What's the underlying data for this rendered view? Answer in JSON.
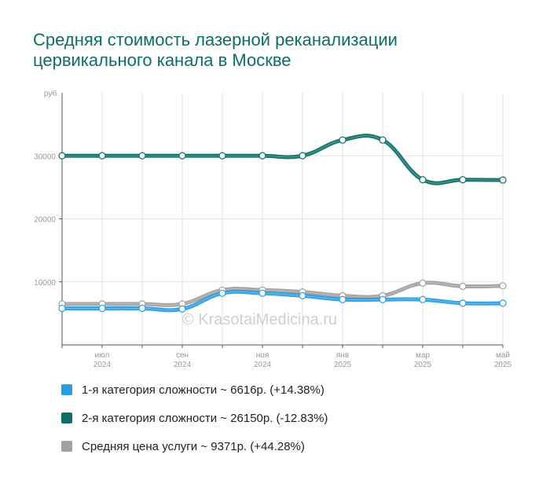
{
  "title": "Средняя стоимость лазерной реканализации цервикального канала в Москве",
  "watermark": "© KrasotaiMedicina.ru",
  "chart_data": {
    "type": "line",
    "title": "Средняя стоимость лазерной реканализации цервикального канала в Москве",
    "ylabel": "руб.",
    "ylim": [
      0,
      40000
    ],
    "y_ticks": [
      "10000",
      "20000",
      "30000"
    ],
    "y_tick_values": [
      10000,
      20000,
      30000
    ],
    "grid": true,
    "legend_position": "bottom",
    "x_tick_labels": [
      {
        "month": "июл",
        "year": "2024",
        "index": 1
      },
      {
        "month": "сен",
        "year": "2024",
        "index": 3
      },
      {
        "month": "ноя",
        "year": "2024",
        "index": 5
      },
      {
        "month": "янв",
        "year": "2025",
        "index": 7
      },
      {
        "month": "мар",
        "year": "2025",
        "index": 9
      },
      {
        "month": "май",
        "year": "2025",
        "index": 11
      }
    ],
    "x": [
      "2024-06",
      "2024-07",
      "2024-08",
      "2024-09",
      "2024-10",
      "2024-11",
      "2024-12",
      "2025-01",
      "2025-02",
      "2025-03",
      "2025-04",
      "2025-05"
    ],
    "series": [
      {
        "name": "2-я категория сложности ~ 26150р. (-12.83%)",
        "color": "#0d6e67",
        "values": [
          30000,
          30000,
          30000,
          30000,
          30000,
          30000,
          30000,
          32500,
          32500,
          26200,
          26200,
          26150
        ]
      },
      {
        "name": "Средняя цена услуги ~ 9371р. (+44.28%)",
        "color": "#a0a0a0",
        "values": [
          6500,
          6500,
          6500,
          6500,
          8700,
          8700,
          8400,
          7800,
          7800,
          9800,
          9300,
          9371
        ]
      },
      {
        "name": "1-я категория сложности ~ 6616р. (+14.38%)",
        "color": "#2a9de0",
        "values": [
          5800,
          5800,
          5800,
          5700,
          8200,
          8200,
          7800,
          7200,
          7200,
          7200,
          6616,
          6616
        ]
      }
    ]
  },
  "legend": [
    {
      "label": "1-я категория сложности ~ 6616р. (+14.38%)",
      "color": "#2a9de0"
    },
    {
      "label": "2-я категория сложности ~ 26150р. (-12.83%)",
      "color": "#0d6e67"
    },
    {
      "label": "Средняя цена услуги ~ 9371р. (+44.28%)",
      "color": "#a0a0a0"
    }
  ]
}
